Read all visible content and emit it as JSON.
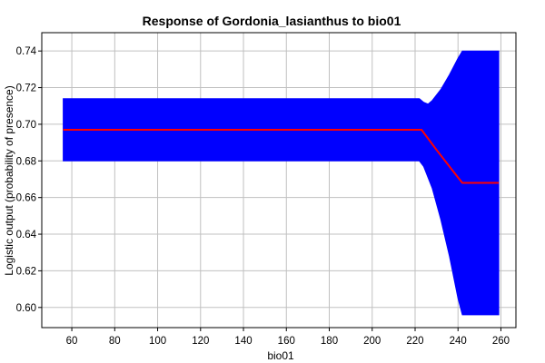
{
  "chart_data": {
    "type": "area",
    "title": "Response of Gordonia_lasianthus to bio01",
    "xlabel": "bio01",
    "ylabel": "Logistic output (probability of presence)",
    "xlim": [
      46,
      267
    ],
    "ylim": [
      0.589,
      0.75
    ],
    "xticks": [
      60,
      80,
      100,
      120,
      140,
      160,
      180,
      200,
      220,
      240,
      260
    ],
    "yticks": [
      0.6,
      0.62,
      0.64,
      0.66,
      0.68,
      0.7,
      0.72,
      0.74
    ],
    "grid": true,
    "colors": {
      "band": "#0000ff",
      "mean": "#ff0000",
      "grid": "#c0c0c0"
    },
    "series": [
      {
        "role": "mean",
        "x": [
          56,
          60,
          100,
          140,
          180,
          200,
          220,
          223,
          230,
          240,
          242,
          250,
          259
        ],
        "y": [
          0.697,
          0.697,
          0.697,
          0.697,
          0.697,
          0.697,
          0.697,
          0.697,
          0.686,
          0.671,
          0.668,
          0.668,
          0.668
        ]
      },
      {
        "role": "upper",
        "x": [
          56,
          100,
          180,
          222,
          224,
          226,
          228,
          232,
          236,
          240,
          242,
          250,
          259
        ],
        "y": [
          0.714,
          0.714,
          0.714,
          0.714,
          0.712,
          0.711,
          0.713,
          0.719,
          0.727,
          0.736,
          0.74,
          0.74,
          0.74
        ]
      },
      {
        "role": "lower",
        "x": [
          56,
          100,
          180,
          222,
          224,
          228,
          232,
          236,
          240,
          242,
          250,
          259
        ],
        "y": [
          0.68,
          0.68,
          0.68,
          0.68,
          0.677,
          0.665,
          0.648,
          0.628,
          0.605,
          0.596,
          0.596,
          0.596
        ]
      }
    ]
  }
}
